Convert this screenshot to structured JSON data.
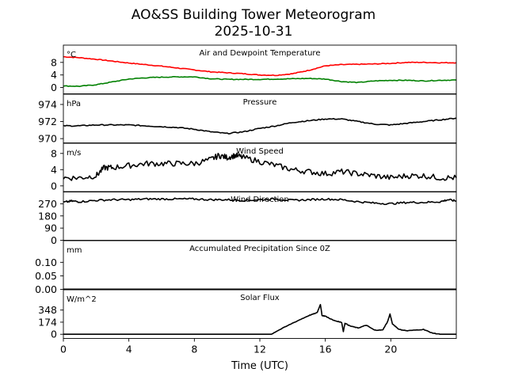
{
  "title": "AO&SS Building Tower Meteorogram",
  "subtitle": "2025-10-31",
  "colors": {
    "temperature": "#ff0000",
    "dewpoint": "#008000",
    "line": "#000000"
  },
  "chart_data": {
    "type": "line",
    "title": "AO&SS Building Tower Meteorogram 2025-10-31",
    "xlabel": "Time (UTC)",
    "xlim": [
      0,
      24
    ],
    "xticks": [
      0,
      4,
      8,
      12,
      16,
      20
    ],
    "xtick_labels": [
      "0",
      "4",
      "8",
      "12",
      "16",
      "20"
    ],
    "panels": [
      {
        "id": "temp",
        "title": "Air and Dewpoint Temperature",
        "unit_label": "°C",
        "ylim": [
          -2,
          13.5
        ],
        "yticks": [
          0,
          4,
          8
        ],
        "ytick_labels": [
          "0",
          "4",
          "8"
        ],
        "series": [
          {
            "name": "Air Temperature",
            "color": "#ff0000",
            "x": [
              0,
              1,
              2,
              3,
              4,
              5,
              6,
              7,
              8,
              9,
              10,
              11,
              12,
              13,
              14,
              15,
              16,
              17,
              18,
              19,
              20,
              21,
              22,
              23,
              24
            ],
            "y": [
              9.8,
              9.5,
              9.0,
              8.4,
              7.8,
              7.3,
              6.8,
              6.2,
              5.6,
              5.0,
              4.7,
              4.4,
              4.0,
              3.9,
              4.4,
              5.5,
              6.9,
              7.3,
              7.4,
              7.5,
              7.7,
              8.0,
              8.0,
              7.9,
              7.9
            ]
          },
          {
            "name": "Dewpoint",
            "color": "#008000",
            "x": [
              0,
              1,
              2,
              3,
              4,
              5,
              6,
              7,
              8,
              9,
              10,
              11,
              12,
              13,
              14,
              15,
              16,
              17,
              18,
              19,
              20,
              21,
              22,
              23,
              24
            ],
            "y": [
              0.5,
              0.4,
              0.9,
              1.8,
              2.7,
              3.1,
              3.3,
              3.4,
              3.4,
              2.8,
              2.6,
              2.6,
              2.6,
              2.7,
              2.8,
              2.9,
              2.7,
              1.9,
              1.6,
              2.1,
              2.3,
              2.3,
              2.1,
              2.3,
              2.4
            ]
          }
        ]
      },
      {
        "id": "pressure",
        "title": "Pressure",
        "unit_label": "hPa",
        "ylim": [
          969.5,
          975.2
        ],
        "yticks": [
          970,
          972,
          974
        ],
        "ytick_labels": [
          "970",
          "972",
          "974"
        ],
        "series": [
          {
            "name": "Pressure",
            "color": "#000000",
            "x": [
              0,
              1,
              2,
              3,
              4,
              5,
              6,
              7,
              8,
              9,
              10,
              11,
              12,
              13,
              14,
              15,
              16,
              17,
              18,
              19,
              20,
              21,
              22,
              23,
              24
            ],
            "y": [
              971.5,
              971.5,
              971.6,
              971.6,
              971.6,
              971.5,
              971.4,
              971.3,
              971.1,
              970.8,
              970.6,
              970.8,
              971.2,
              971.5,
              971.9,
              972.1,
              972.3,
              972.3,
              972.0,
              971.7,
              971.6,
              971.8,
              972.0,
              972.2,
              972.4
            ]
          }
        ]
      },
      {
        "id": "wind_speed",
        "title": "Wind Speed",
        "unit_label": "m/s",
        "ylim": [
          -1.5,
          10.5
        ],
        "yticks": [
          0,
          4,
          8
        ],
        "ytick_labels": [
          "0",
          "4",
          "8"
        ],
        "series": [
          {
            "name": "Wind Speed",
            "color": "#000000",
            "x": [
              0,
              1,
              2,
              2.5,
              3,
              4,
              5,
              6,
              7,
              8,
              9,
              9.5,
              10,
              10.5,
              11,
              12,
              13,
              14,
              15,
              16,
              17,
              18,
              19,
              20,
              21,
              22,
              23,
              24
            ],
            "y": [
              2.0,
              2.0,
              2.5,
              4.5,
              4.5,
              5.0,
              5.5,
              5.5,
              5.5,
              5.5,
              6.5,
              7.5,
              7.0,
              7.5,
              7.0,
              6.0,
              5.0,
              4.0,
              3.5,
              3.0,
              3.5,
              3.0,
              2.5,
              2.0,
              2.5,
              2.5,
              2.0,
              2.0
            ]
          }
        ]
      },
      {
        "id": "wind_dir",
        "title": "Wind Direction",
        "unit_label": "",
        "ylim": [
          0,
          360
        ],
        "yticks": [
          0,
          90,
          180,
          270
        ],
        "ytick_labels": [
          "0",
          "90",
          "180",
          "270"
        ],
        "series": [
          {
            "name": "Wind Direction",
            "color": "#000000",
            "x": [
              0,
              0.5,
              1,
              2,
              3,
              4,
              5,
              6,
              7,
              8,
              9,
              10,
              11,
              12,
              13,
              14,
              15,
              16,
              17,
              18,
              19,
              20,
              21,
              22,
              23,
              23.5,
              24
            ],
            "y": [
              280,
              290,
              285,
              295,
              300,
              300,
              305,
              305,
              305,
              305,
              300,
              300,
              295,
              300,
              305,
              295,
              300,
              305,
              300,
              285,
              275,
              270,
              280,
              280,
              285,
              300,
              290
            ]
          }
        ]
      },
      {
        "id": "precip",
        "title": "Accumulated Precipitation Since 0Z",
        "unit_label": "mm",
        "ylim": [
          0,
          0.18
        ],
        "yticks": [
          0.0,
          0.05,
          0.1
        ],
        "ytick_labels": [
          "0.00",
          "0.05",
          "0.10"
        ],
        "series": [
          {
            "name": "Accumulated Precipitation",
            "color": "#000000",
            "x": [
              0,
              24
            ],
            "y": [
              0,
              0
            ]
          }
        ]
      },
      {
        "id": "solar",
        "title": "Solar Flux",
        "unit_label": "W/m^2",
        "ylim": [
          -60,
          640
        ],
        "yticks": [
          0,
          174,
          348
        ],
        "ytick_labels": [
          "0",
          "174",
          "348"
        ],
        "series": [
          {
            "name": "Solar Flux",
            "color": "#000000",
            "x": [
              0,
              12.7,
              13,
              14,
              15,
              15.5,
              15.7,
              15.8,
              16,
              16.5,
              17,
              17.1,
              17.2,
              17.5,
              18,
              18.5,
              19,
              19.5,
              19.8,
              19.95,
              20.1,
              20.5,
              21,
              22,
              22.5,
              23,
              24
            ],
            "y": [
              0,
              0,
              40,
              160,
              270,
              310,
              430,
              270,
              260,
              200,
              170,
              40,
              160,
              120,
              90,
              130,
              60,
              60,
              180,
              290,
              150,
              70,
              50,
              70,
              20,
              0,
              0
            ]
          }
        ]
      }
    ]
  }
}
